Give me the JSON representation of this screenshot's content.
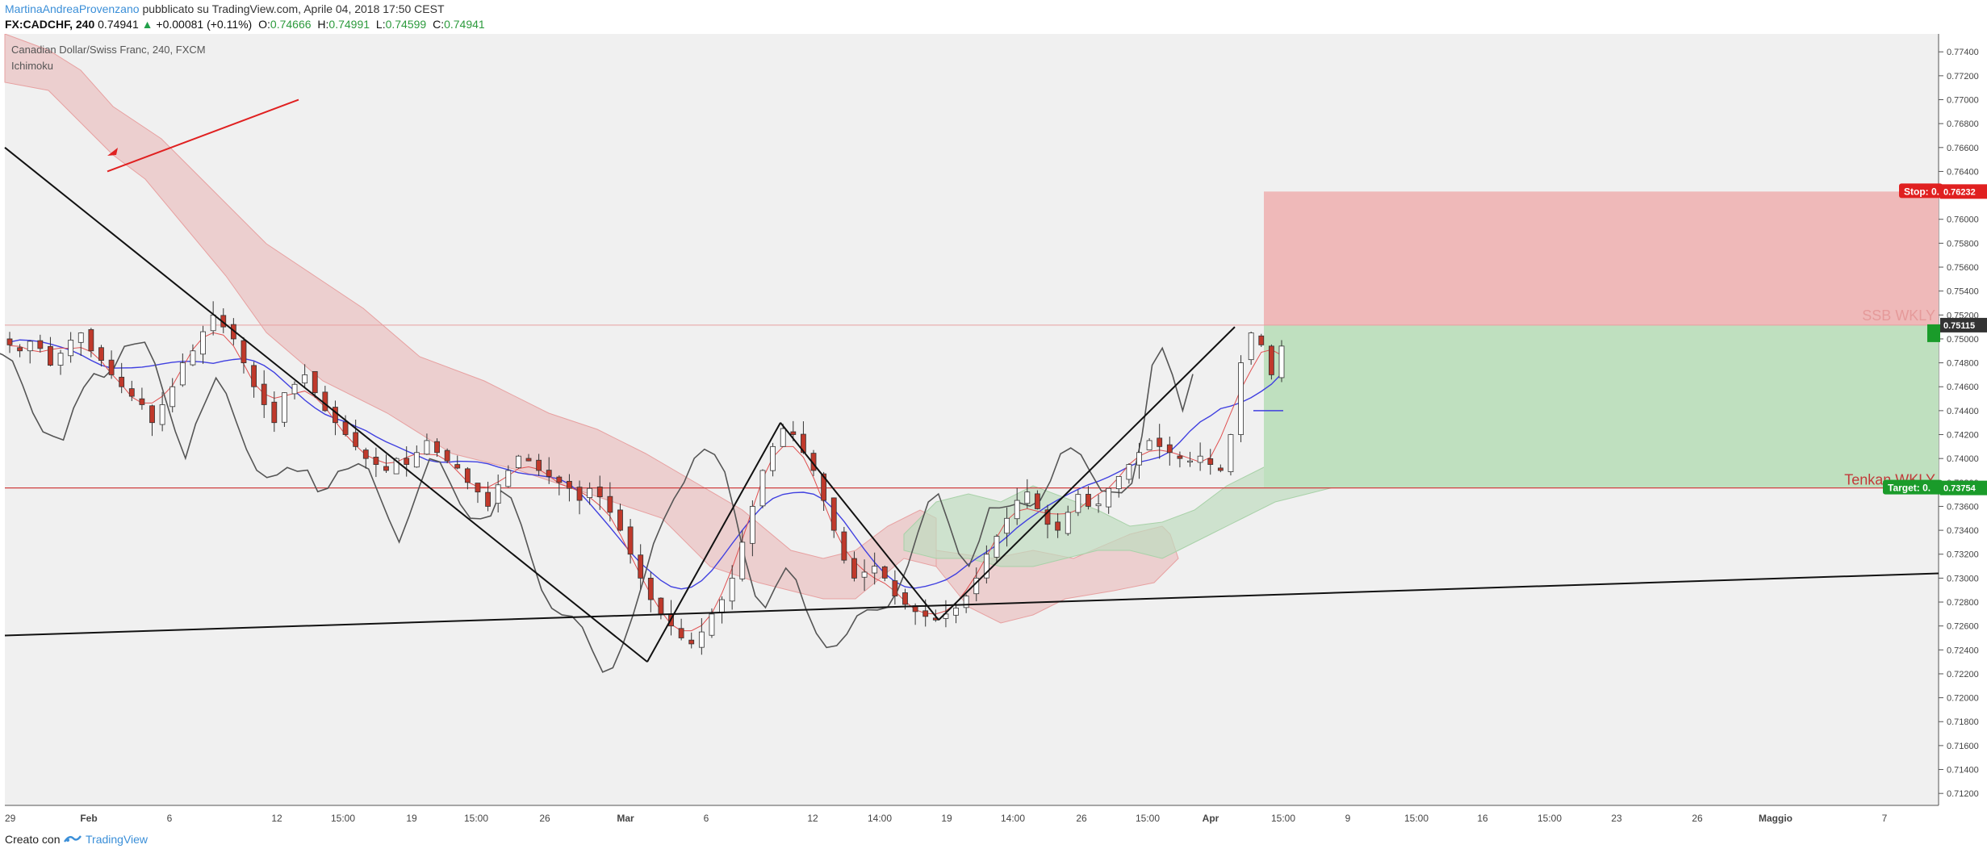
{
  "header": {
    "author": "MartinaAndreaProvenzano",
    "published": "pubblicato su TradingView.com, Aprile 04, 2018 17:50 CEST",
    "symbol": "FX:CADCHF, 240",
    "last": "0.74941",
    "change": "+0.00081 (+0.11%)",
    "o_label": "O:",
    "o_value": "0.74666",
    "h_label": "H:",
    "h_value": "0.74991",
    "l_label": "L:",
    "l_value": "0.74599",
    "c_label": "C:",
    "c_value": "0.74941"
  },
  "legend": {
    "instrument": "Canadian Dollar/Swiss Franc, 240, FXCM",
    "indicator": "Ichimoku"
  },
  "footer": {
    "made_with": "Creato con",
    "brand": "TradingView"
  },
  "chart_data": {
    "type": "candlestick",
    "ylim": [
      0.711,
      0.7755
    ],
    "y_ticks": [
      "0.77400",
      "0.77200",
      "0.77000",
      "0.76800",
      "0.76600",
      "0.76400",
      "0.76200",
      "0.76000",
      "0.75800",
      "0.75600",
      "0.75400",
      "0.75200",
      "0.75000",
      "0.74800",
      "0.74600",
      "0.74400",
      "0.74200",
      "0.74000",
      "0.73800",
      "0.73600",
      "0.73400",
      "0.73200",
      "0.73000",
      "0.72800",
      "0.72600",
      "0.72400",
      "0.72200",
      "0.72000",
      "0.71800",
      "0.71600",
      "0.71400",
      "0.71200"
    ],
    "x_ticks": [
      "29",
      "Feb",
      "6",
      "12",
      "15:00",
      "19",
      "15:00",
      "26",
      "Mar",
      "6",
      "12",
      "14:00",
      "19",
      "14:00",
      "26",
      "15:00",
      "Apr",
      "15:00",
      "9",
      "15:00",
      "16",
      "15:00",
      "23",
      "26",
      "Maggio",
      "7"
    ],
    "price_labels": {
      "stop": {
        "label": "Stop: 0.",
        "value": "0.76232"
      },
      "current": {
        "value": "0.75115"
      },
      "target": {
        "label": "Target: 0.",
        "value": "0.73754"
      }
    },
    "annotations": {
      "ssb": "SSB WKLY",
      "tenkan": "Tenkan WKLY"
    },
    "levels": {
      "ssb": 0.75115,
      "tenkan": 0.73754,
      "stop": 0.76232,
      "entry": 0.75115,
      "target": 0.73754
    },
    "close_path": [
      0.7495,
      0.749,
      0.7498,
      0.7492,
      0.7478,
      0.7488,
      0.7499,
      0.7505,
      0.749,
      0.7482,
      0.747,
      0.746,
      0.7452,
      0.7445,
      0.743,
      0.7445,
      0.746,
      0.748,
      0.749,
      0.7506,
      0.752,
      0.751,
      0.75,
      0.748,
      0.746,
      0.7445,
      0.743,
      0.7455,
      0.7462,
      0.747,
      0.7455,
      0.744,
      0.743,
      0.742,
      0.741,
      0.74,
      0.7395,
      0.739,
      0.74,
      0.7395,
      0.7405,
      0.7415,
      0.7405,
      0.7398,
      0.7392,
      0.738,
      0.7372,
      0.736,
      0.7378,
      0.739,
      0.7402,
      0.7398,
      0.739,
      0.7385,
      0.738,
      0.7375,
      0.7365,
      0.7375,
      0.7368,
      0.7355,
      0.734,
      0.732,
      0.73,
      0.7282,
      0.727,
      0.726,
      0.725,
      0.7245,
      0.7255,
      0.727,
      0.7282,
      0.73,
      0.733,
      0.736,
      0.739,
      0.741,
      0.7425,
      0.742,
      0.7405,
      0.739,
      0.7365,
      0.734,
      0.7315,
      0.73,
      0.7305,
      0.731,
      0.73,
      0.7285,
      0.7278,
      0.7272,
      0.7268,
      0.7265,
      0.727,
      0.7275,
      0.7285,
      0.73,
      0.732,
      0.7335,
      0.735,
      0.7365,
      0.7372,
      0.7358,
      0.7345,
      0.734,
      0.7355,
      0.737,
      0.736,
      0.7362,
      0.7375,
      0.7385,
      0.7395,
      0.7405,
      0.7415,
      0.741,
      0.7405,
      0.74,
      0.7398,
      0.7402,
      0.7395,
      0.739,
      0.742,
      0.748,
      0.7505,
      0.7495,
      0.747,
      0.7494
    ]
  }
}
